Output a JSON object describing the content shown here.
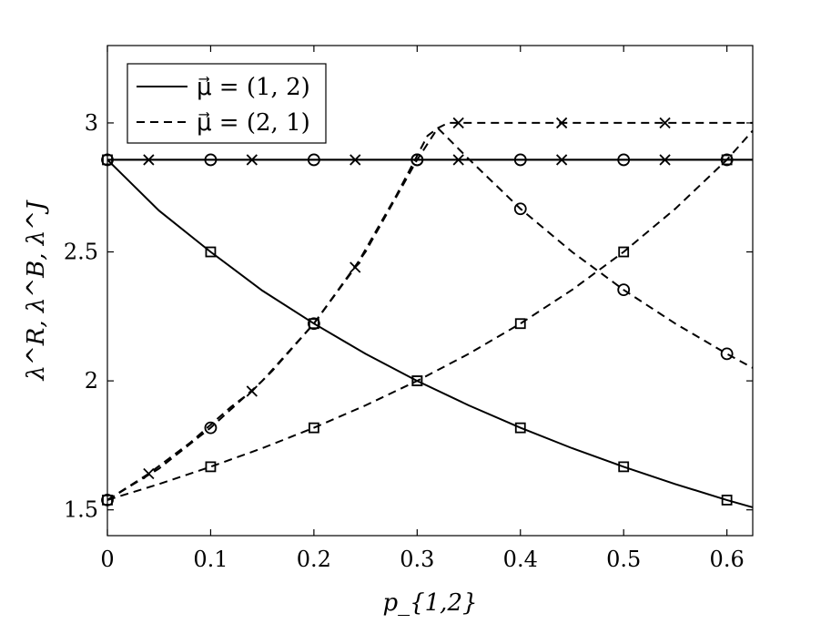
{
  "chart_data": {
    "type": "line",
    "xlabel": "p_{1,2}",
    "ylabel": "λ^R, λ^B, λ^J",
    "xlim": [
      0,
      0.625
    ],
    "ylim": [
      1.4,
      3.3
    ],
    "x_ticks": [
      0,
      0.1,
      0.2,
      0.3,
      0.4,
      0.5,
      0.6
    ],
    "x_tick_labels": [
      "0",
      "0.1",
      "0.2",
      "0.3",
      "0.4",
      "0.5",
      "0.6"
    ],
    "y_ticks": [
      1.5,
      2,
      2.5,
      3
    ],
    "y_tick_labels": [
      "1.5",
      "2",
      "2.5",
      "3"
    ],
    "grid": false,
    "legend_position": "top-left",
    "legend": [
      {
        "label": "μ⃗ = (1, 2)",
        "style": "solid"
      },
      {
        "label": "μ⃗ = (2, 1)",
        "style": "dashed"
      }
    ],
    "series": [
      {
        "style": "solid",
        "marker": "x",
        "x": [
          0,
          0.625
        ],
        "y": [
          2.857,
          2.857
        ],
        "marker_x": [
          0.04,
          0.14,
          0.24,
          0.34,
          0.44,
          0.54
        ],
        "marker_y": [
          2.857,
          2.857,
          2.857,
          2.857,
          2.857,
          2.857
        ]
      },
      {
        "style": "solid",
        "marker": "o",
        "x": [
          0,
          0.625
        ],
        "y": [
          2.857,
          2.857
        ],
        "marker_x": [
          0,
          0.1,
          0.2,
          0.3,
          0.4,
          0.5,
          0.6
        ],
        "marker_y": [
          2.857,
          2.857,
          2.857,
          2.857,
          2.857,
          2.857,
          2.857
        ]
      },
      {
        "style": "solid",
        "marker": "square",
        "x": [
          0,
          0.05,
          0.1,
          0.15,
          0.2,
          0.25,
          0.3,
          0.35,
          0.4,
          0.45,
          0.5,
          0.55,
          0.6,
          0.625
        ],
        "y": [
          2.857,
          2.66,
          2.5,
          2.35,
          2.222,
          2.105,
          2.0,
          1.905,
          1.818,
          1.739,
          1.667,
          1.6,
          1.538,
          1.51
        ],
        "marker_x": [
          0,
          0.1,
          0.2,
          0.3,
          0.4,
          0.5,
          0.6
        ],
        "marker_y": [
          2.857,
          2.5,
          2.222,
          2.0,
          1.818,
          1.667,
          1.538
        ]
      },
      {
        "style": "dashed",
        "marker": "x",
        "x": [
          0,
          0.04,
          0.08,
          0.12,
          0.14,
          0.16,
          0.2,
          0.24,
          0.28,
          0.31,
          0.32,
          0.33,
          0.34,
          0.44,
          0.54,
          0.625
        ],
        "y": [
          1.538,
          1.64,
          1.76,
          1.9,
          1.96,
          2.04,
          2.222,
          2.44,
          2.72,
          2.95,
          2.98,
          3.0,
          3.0,
          3.0,
          3.0,
          3.0
        ],
        "marker_x": [
          0.04,
          0.14,
          0.24,
          0.34,
          0.44,
          0.54
        ],
        "marker_y": [
          1.64,
          1.96,
          2.44,
          3.0,
          3.0,
          3.0
        ]
      },
      {
        "style": "dashed",
        "marker": "o",
        "x": [
          0,
          0.05,
          0.1,
          0.15,
          0.2,
          0.25,
          0.3,
          0.32,
          0.35,
          0.4,
          0.45,
          0.5,
          0.55,
          0.6,
          0.625
        ],
        "y": [
          1.538,
          1.66,
          1.818,
          2.0,
          2.222,
          2.5,
          2.857,
          2.98,
          2.86,
          2.667,
          2.5,
          2.353,
          2.222,
          2.105,
          2.05
        ],
        "marker_x": [
          0,
          0.1,
          0.2,
          0.3,
          0.4,
          0.5,
          0.6
        ],
        "marker_y": [
          1.538,
          1.818,
          2.222,
          2.857,
          2.667,
          2.353,
          2.105
        ]
      },
      {
        "style": "dashed",
        "marker": "square",
        "x": [
          0,
          0.05,
          0.1,
          0.15,
          0.2,
          0.25,
          0.3,
          0.35,
          0.4,
          0.45,
          0.5,
          0.55,
          0.6,
          0.625
        ],
        "y": [
          1.538,
          1.6,
          1.667,
          1.739,
          1.818,
          1.905,
          2.0,
          2.105,
          2.222,
          2.353,
          2.5,
          2.667,
          2.857,
          2.97
        ],
        "marker_x": [
          0,
          0.1,
          0.2,
          0.3,
          0.4,
          0.5,
          0.6
        ],
        "marker_y": [
          1.538,
          1.667,
          1.818,
          2.0,
          2.222,
          2.5,
          2.857
        ]
      }
    ]
  }
}
